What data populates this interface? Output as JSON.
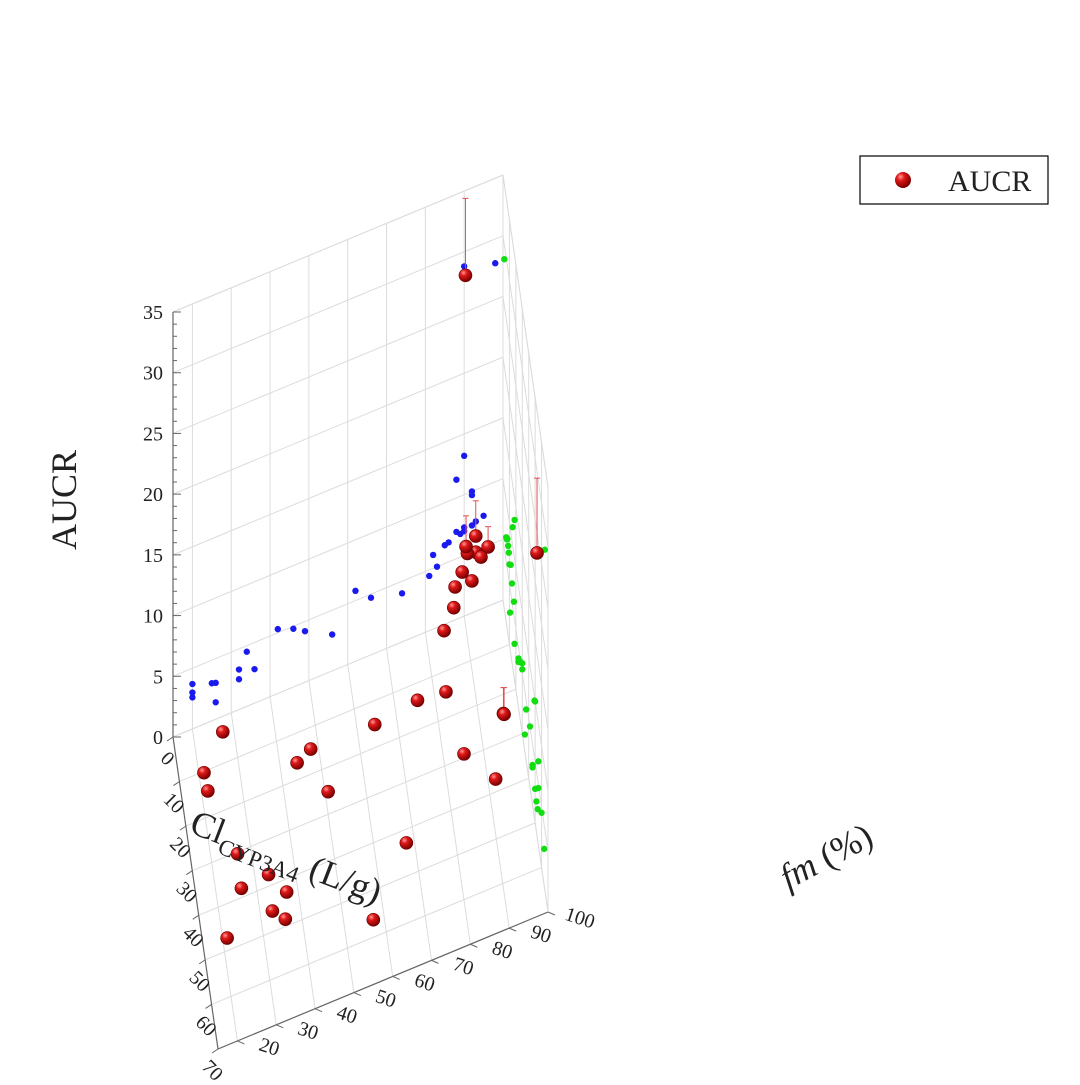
{
  "chart_data": {
    "type": "scatter3d",
    "x_axis": {
      "label_main": "Cl",
      "label_sub": "CYP3A4",
      "label_unit": " (L/g)",
      "range": [
        0,
        70
      ],
      "ticks": [
        0,
        10,
        20,
        30,
        40,
        50,
        60,
        70
      ]
    },
    "y_axis": {
      "label_main": "fm",
      "label_unit": " (%)",
      "range": [
        15,
        100
      ],
      "ticks": [
        20,
        30,
        40,
        50,
        60,
        70,
        80,
        90,
        100
      ]
    },
    "z_axis": {
      "label": "AUCR",
      "range": [
        0,
        35
      ],
      "ticks": [
        0,
        5,
        10,
        15,
        20,
        25,
        30,
        35
      ]
    },
    "legend": {
      "position": "top-right",
      "label": "AUCR"
    },
    "grid": true,
    "colors": {
      "points": "#cc1111",
      "projection_xz": "#1a1aee",
      "projection_yz": "#11dd11",
      "error_bars": "#e05050"
    },
    "series": [
      {
        "name": "AUCR",
        "points": [
          {
            "x": 2,
            "y": 90,
            "z": 28.8
          },
          {
            "x": 65,
            "y": 98,
            "z": 28.0
          },
          {
            "x": 18,
            "y": 90,
            "z": 13.2
          },
          {
            "x": 15,
            "y": 88,
            "z": 11.5
          },
          {
            "x": 50,
            "y": 92,
            "z": 10.0
          },
          {
            "x": 49,
            "y": 92,
            "z": 9.7
          },
          {
            "x": 7,
            "y": 95,
            "z": 7.6
          },
          {
            "x": 8,
            "y": 93,
            "z": 7.4
          },
          {
            "x": 6,
            "y": 92,
            "z": 7.2
          },
          {
            "x": 5,
            "y": 90,
            "z": 7.0
          },
          {
            "x": 9,
            "y": 88,
            "z": 7.2
          },
          {
            "x": 10,
            "y": 86,
            "z": 6.6
          },
          {
            "x": 14,
            "y": 85,
            "z": 6.5
          },
          {
            "x": 12,
            "y": 90,
            "z": 7.3
          },
          {
            "x": 55,
            "y": 89,
            "z": 6.9
          },
          {
            "x": 55,
            "y": 66,
            "z": 4.7
          },
          {
            "x": 42,
            "y": 83,
            "z": 5.0
          },
          {
            "x": 26,
            "y": 81,
            "z": 4.5
          },
          {
            "x": 17,
            "y": 82,
            "z": 6.1
          },
          {
            "x": 30,
            "y": 62,
            "z": 5.8
          },
          {
            "x": 24,
            "y": 74,
            "z": 4.0
          },
          {
            "x": 27,
            "y": 46,
            "z": 4.8
          },
          {
            "x": 30,
            "y": 42,
            "z": 5.3
          },
          {
            "x": 36,
            "y": 49,
            "z": 4.2
          },
          {
            "x": 64,
            "y": 56,
            "z": 3.0
          },
          {
            "x": 60,
            "y": 34,
            "z": 4.5
          },
          {
            "x": 46,
            "y": 32,
            "z": 3.3
          },
          {
            "x": 34,
            "y": 26,
            "z": 1.4
          },
          {
            "x": 46,
            "y": 25,
            "z": 3.1
          },
          {
            "x": 50,
            "y": 36,
            "z": 2.8
          },
          {
            "x": 52,
            "y": 32,
            "z": 2.5
          },
          {
            "x": 24,
            "y": 20,
            "z": 3.7
          },
          {
            "x": 11,
            "y": 26,
            "z": 3.0
          },
          {
            "x": 18,
            "y": 20,
            "z": 3.0
          },
          {
            "x": 54,
            "y": 20,
            "z": 2.6
          }
        ]
      }
    ]
  }
}
